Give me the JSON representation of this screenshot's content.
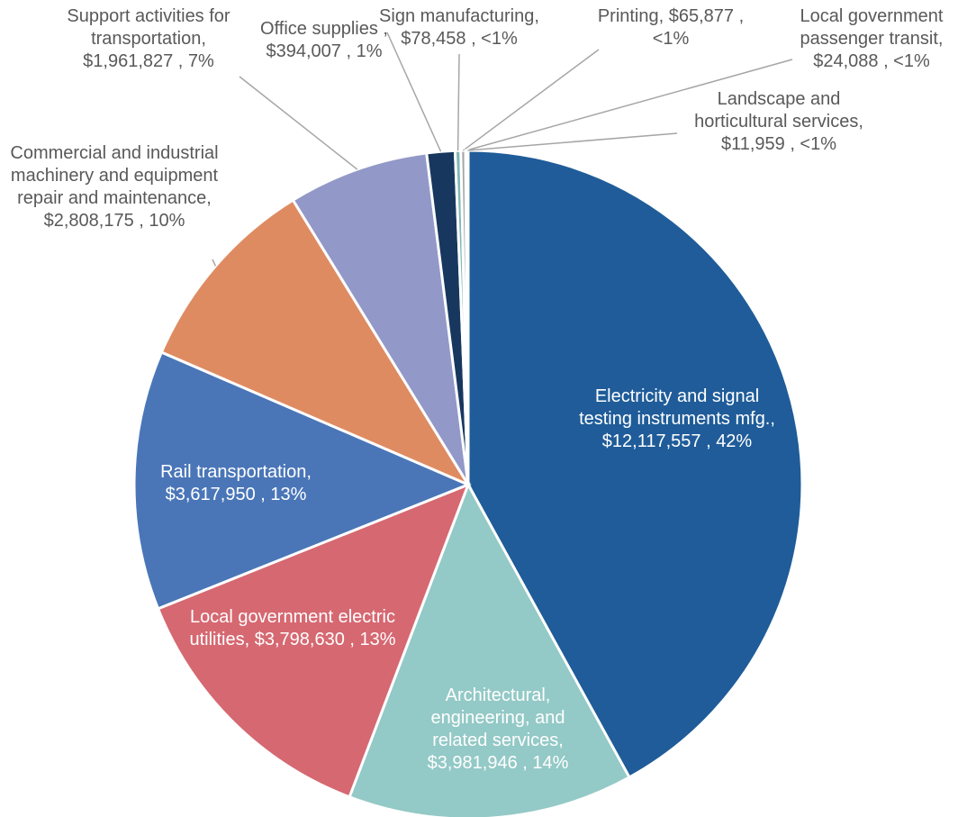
{
  "chart_data": {
    "type": "pie",
    "categories": [
      "Electricity and signal testing instruments mfg.,",
      "Architectural, engineering, and related services,",
      "Local government electric utilities,",
      "Rail transportation,",
      "Commercial and industrial machinery and equipment repair and maintenance,",
      "Support activities for transportation,",
      "Office supplies ,",
      "Sign manufacturing,",
      "Printing,",
      "Local government passenger transit,",
      "Landscape and horticultural services,"
    ],
    "values": [
      12117557,
      3981946,
      3798630,
      3617950,
      2808175,
      1961827,
      394007,
      78458,
      65877,
      24088,
      11959
    ],
    "value_labels": [
      "$12,117,557 , 42%",
      "$3,981,946 , 14%",
      "$3,798,630 , 13%",
      "$3,617,950 , 13%",
      "$2,808,175 , 10%",
      "$1,961,827 , 7%",
      "$394,007 , 1%",
      "$78,458 , <1%",
      "$65,877 , <1%",
      "$24,088 , <1%",
      "$11,959 , <1%"
    ],
    "colors": [
      "#1f5c99",
      "#93c9c6",
      "#d66871",
      "#4a76b8",
      "#df8b62",
      "#9299c8",
      "#17375e",
      "#7fb8b5",
      "#a6a6a6",
      "#c0504d",
      "#4f81bd"
    ]
  }
}
